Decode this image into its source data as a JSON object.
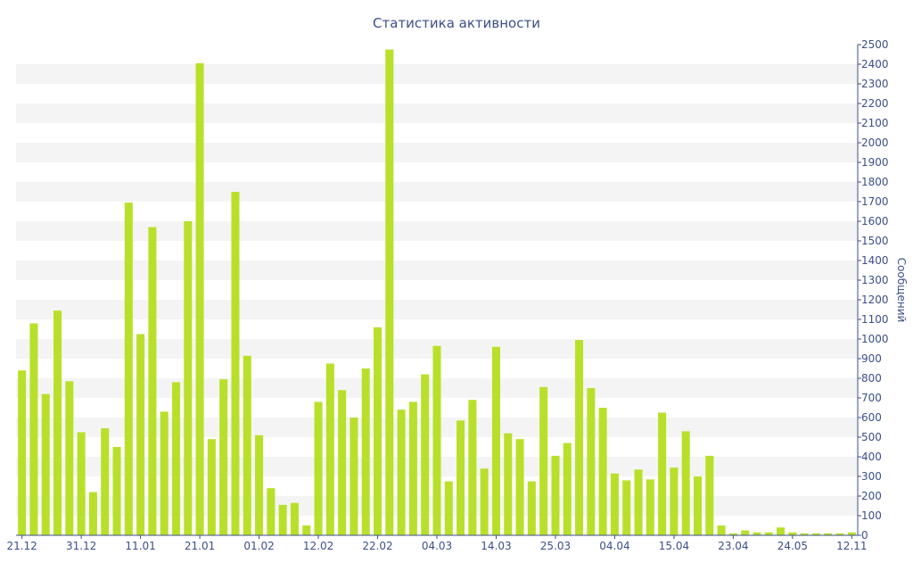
{
  "chart_data": {
    "type": "bar",
    "title": "Статистика активности",
    "xlabel": "",
    "ylabel": "Сообщений",
    "ylim": [
      0,
      2500
    ],
    "y_ticks": [
      0,
      100,
      200,
      300,
      400,
      500,
      600,
      700,
      800,
      900,
      1000,
      1100,
      1200,
      1300,
      1400,
      1500,
      1600,
      1700,
      1800,
      1900,
      2000,
      2100,
      2200,
      2300,
      2400,
      2500
    ],
    "x_tick_labels": [
      {
        "index": 0,
        "label": "21.12"
      },
      {
        "index": 5,
        "label": "31.12"
      },
      {
        "index": 10,
        "label": "11.01"
      },
      {
        "index": 15,
        "label": "21.01"
      },
      {
        "index": 20,
        "label": "01.02"
      },
      {
        "index": 25,
        "label": "12.02"
      },
      {
        "index": 30,
        "label": "22.02"
      },
      {
        "index": 35,
        "label": "04.03"
      },
      {
        "index": 40,
        "label": "14.03"
      },
      {
        "index": 45,
        "label": "25.03"
      },
      {
        "index": 50,
        "label": "04.04"
      },
      {
        "index": 55,
        "label": "15.04"
      },
      {
        "index": 60,
        "label": "23.04"
      },
      {
        "index": 65,
        "label": "24.05"
      },
      {
        "index": 70,
        "label": "12.11"
      }
    ],
    "values": [
      840,
      1080,
      720,
      1145,
      785,
      525,
      220,
      545,
      450,
      1695,
      1025,
      1570,
      630,
      780,
      1600,
      2405,
      490,
      795,
      1750,
      915,
      510,
      240,
      155,
      165,
      50,
      680,
      875,
      740,
      600,
      850,
      1060,
      2475,
      640,
      680,
      820,
      965,
      275,
      585,
      690,
      340,
      960,
      520,
      490,
      275,
      755,
      405,
      470,
      995,
      750,
      650,
      315,
      280,
      335,
      285,
      625,
      345,
      530,
      300,
      405,
      50,
      10,
      25,
      15,
      15,
      40,
      15,
      10,
      10,
      10,
      10,
      15
    ],
    "grid": true,
    "bar_color": "#b8e02a",
    "grid_band_color": "#f4f4f4",
    "text_color": "#3b4f8a",
    "y_axis_position": "right",
    "legend": "none"
  }
}
